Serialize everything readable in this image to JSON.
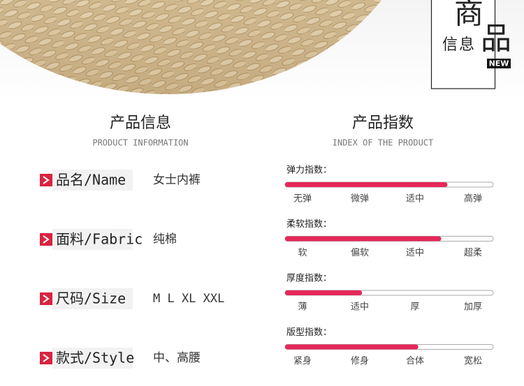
{
  "badge": {
    "big1": "商",
    "big2": "品",
    "small": "信息",
    "tag": "NEW"
  },
  "info": {
    "title": "产品信息",
    "subtitle": "PRODUCT INFORMATION",
    "rows": [
      {
        "label": "品名/Name",
        "value": "女士内裤"
      },
      {
        "label": "面料/Fabric",
        "value": "纯棉"
      },
      {
        "label": "尺码/Size",
        "value": "M L XL XXL"
      },
      {
        "label": "款式/Style",
        "value": "中、高腰"
      }
    ]
  },
  "index": {
    "title": "产品指数",
    "subtitle": "INDEX OF THE PRODUCT",
    "items": [
      {
        "name": "弹力指数：",
        "level": 0.78,
        "scale": [
          "无弹",
          "微弹",
          "适中",
          "高弹"
        ]
      },
      {
        "name": "柔软指数：",
        "level": 0.75,
        "scale": [
          "软",
          "偏软",
          "适中",
          "超柔"
        ]
      },
      {
        "name": "厚度指数：",
        "level": 0.37,
        "scale": [
          "薄",
          "适中",
          "厚",
          "加厚"
        ]
      },
      {
        "name": "版型指数：",
        "level": 0.64,
        "scale": [
          "紧身",
          "修身",
          "合体",
          "宽松"
        ]
      }
    ]
  }
}
